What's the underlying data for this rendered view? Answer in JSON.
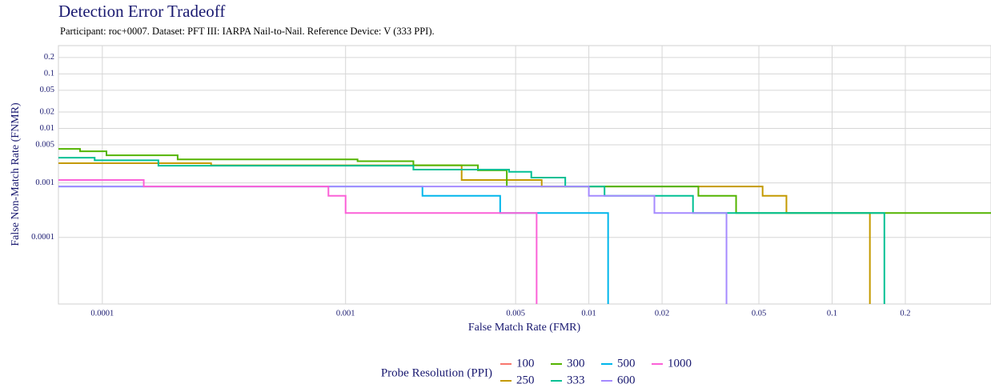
{
  "chart_data": {
    "type": "step",
    "title": "Detection Error Tradeoff",
    "subtitle": "Participant: roc+0007. Dataset: PFT III: IARPA Nail-to-Nail. Reference Device: V (333 PPI).",
    "x_label": "False Match Rate (FMR)",
    "y_label": "False Non-Match Rate (FNMR)",
    "legend_title": "Probe Resolution (PPI)",
    "x_log": true,
    "y_log": true,
    "grid": true,
    "xlim": [
      6.6e-05,
      0.45
    ],
    "ylim": [
      6e-06,
      0.33
    ],
    "xticks": [
      0.0001,
      0.001,
      0.005,
      0.01,
      0.02,
      0.05,
      0.1,
      0.2
    ],
    "yticks": [
      0.0001,
      0.001,
      0.005,
      0.01,
      0.02,
      0.05,
      0.1,
      0.2
    ],
    "series": [
      {
        "name": "100",
        "color": "#F8766D",
        "x": [],
        "values": []
      },
      {
        "name": "250",
        "color": "#C49A00",
        "x": [
          6.6e-05,
          0.00028,
          0.003,
          0.0064,
          0.0518,
          0.0649,
          0.143
        ],
        "values": [
          0.0023,
          0.0021,
          0.00113,
          0.00086,
          0.00058,
          0.00028,
          6e-06
        ]
      },
      {
        "name": "300",
        "color": "#53B400",
        "x": [
          6.6e-05,
          8.1e-05,
          0.000104,
          0.000204,
          0.00112,
          0.0019,
          0.0035,
          0.0046,
          0.0282,
          0.0403,
          0.45
        ],
        "values": [
          0.0042,
          0.0038,
          0.0032,
          0.0027,
          0.0025,
          0.0021,
          0.0017,
          0.00086,
          0.00058,
          0.00028,
          0.00028
        ]
      },
      {
        "name": "333",
        "color": "#00C094",
        "x": [
          6.6e-05,
          9.3e-05,
          0.00017,
          0.0019,
          0.0047,
          0.0058,
          0.008,
          0.0116,
          0.0268,
          0.164
        ],
        "values": [
          0.0029,
          0.0026,
          0.00207,
          0.00175,
          0.0016,
          0.00125,
          0.00086,
          0.00058,
          0.00028,
          6e-06
        ]
      },
      {
        "name": "500",
        "color": "#00B6EB",
        "x": [
          6.6e-05,
          0.00207,
          0.00432,
          0.012
        ],
        "values": [
          0.00086,
          0.00058,
          0.00028,
          6e-06
        ]
      },
      {
        "name": "600",
        "color": "#A58AFF",
        "x": [
          6.6e-05,
          0.01,
          0.0186,
          0.0368
        ],
        "values": [
          0.00086,
          0.00058,
          0.00028,
          6e-06
        ]
      },
      {
        "name": "1000",
        "color": "#FB61D7",
        "x": [
          6.6e-05,
          0.000148,
          0.00085,
          0.001,
          0.0061
        ],
        "values": [
          0.00113,
          0.00086,
          0.00058,
          0.00028,
          6e-06
        ]
      }
    ]
  }
}
